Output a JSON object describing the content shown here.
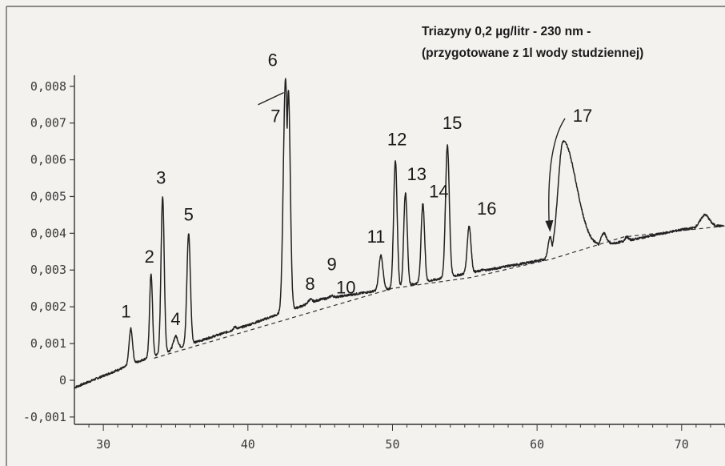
{
  "chart_data": {
    "type": "line",
    "title_lines": [
      "Triazyny 0,2 µg/litr - 230 nm -",
      "(przygotowane z 1l wody studziennej)"
    ],
    "xlabel": "",
    "ylabel": "",
    "xlim": [
      28,
      73
    ],
    "ylim": [
      -0.0012,
      0.0083
    ],
    "x_ticks": [
      {
        "value": 30,
        "label": "30"
      },
      {
        "value": 40,
        "label": "40"
      },
      {
        "value": 50,
        "label": "50"
      },
      {
        "value": 60,
        "label": "60"
      },
      {
        "value": 70,
        "label": "70"
      }
    ],
    "y_ticks": [
      {
        "value": -0.001,
        "label": "-0,001"
      },
      {
        "value": 0,
        "label": "0"
      },
      {
        "value": 0.001,
        "label": "0,001"
      },
      {
        "value": 0.002,
        "label": "0,002"
      },
      {
        "value": 0.003,
        "label": "0,003"
      },
      {
        "value": 0.004,
        "label": "0,004"
      },
      {
        "value": 0.005,
        "label": "0,005"
      },
      {
        "value": 0.006,
        "label": "0,006"
      },
      {
        "value": 0.007,
        "label": "0,007"
      },
      {
        "value": 0.008,
        "label": "0,008"
      }
    ],
    "baseline_points": [
      [
        28,
        -0.0002
      ],
      [
        33,
        0.0006
      ],
      [
        40,
        0.0015
      ],
      [
        45,
        0.0022
      ],
      [
        50,
        0.0025
      ],
      [
        55,
        0.0029
      ],
      [
        58,
        0.0031
      ],
      [
        62,
        0.0034
      ],
      [
        65,
        0.0037
      ],
      [
        70,
        0.0041
      ],
      [
        72,
        0.0042
      ]
    ],
    "dashed_baseline": [
      [
        33.5,
        0.0006
      ],
      [
        50,
        0.0025
      ],
      [
        55.5,
        0.0028
      ],
      [
        61,
        0.0033
      ],
      [
        66,
        0.0039
      ],
      [
        73,
        0.0042
      ]
    ],
    "peaks": [
      {
        "label": "1",
        "x": 31.9,
        "height": 0.0014,
        "width": 0.12
      },
      {
        "label": "2",
        "x": 33.3,
        "height": 0.0029,
        "width": 0.1
      },
      {
        "label": "3",
        "x": 34.1,
        "height": 0.005,
        "width": 0.11
      },
      {
        "label": "4",
        "x": 35.0,
        "height": 0.0012,
        "width": 0.15
      },
      {
        "label": "5",
        "x": 35.9,
        "height": 0.004,
        "width": 0.12
      },
      {
        "label": "6",
        "x": 42.6,
        "height": 0.0082,
        "width": 0.15
      },
      {
        "label": "7",
        "x": 42.8,
        "height": 0.0079,
        "width": 0.13
      },
      {
        "label": "8",
        "x": 44.3,
        "height": 0.0022,
        "width": 0.13
      },
      {
        "label": "9",
        "x": 45.8,
        "height": 0.0023,
        "width": 0.13
      },
      {
        "label": "10",
        "x": 47.0,
        "height": 0.0021,
        "width": 0.12
      },
      {
        "label": "11",
        "x": 49.2,
        "height": 0.0034,
        "width": 0.14
      },
      {
        "label": "12",
        "x": 50.2,
        "height": 0.006,
        "width": 0.12
      },
      {
        "label": "13",
        "x": 50.9,
        "height": 0.0051,
        "width": 0.12
      },
      {
        "label": "14",
        "x": 52.1,
        "height": 0.0048,
        "width": 0.12
      },
      {
        "label": "15",
        "x": 53.8,
        "height": 0.0064,
        "width": 0.13
      },
      {
        "label": "16",
        "x": 55.3,
        "height": 0.0042,
        "width": 0.13
      },
      {
        "label": "17",
        "x": 61.8,
        "height": 0.0065,
        "width": 0.35
      }
    ],
    "minor_bumps": [
      {
        "x": 39.1,
        "height": 0.00145,
        "width": 0.1
      },
      {
        "x": 48.3,
        "height": 0.0022,
        "width": 0.12
      },
      {
        "x": 56.2,
        "height": 0.003,
        "width": 0.12
      },
      {
        "x": 57.8,
        "height": 0.0031,
        "width": 0.25
      },
      {
        "x": 60.9,
        "height": 0.0039,
        "width": 0.14
      },
      {
        "x": 63.3,
        "height": 0.0042,
        "width": 0.3
      },
      {
        "x": 64.6,
        "height": 0.004,
        "width": 0.2
      },
      {
        "x": 66.2,
        "height": 0.0039,
        "width": 0.12
      },
      {
        "x": 71.6,
        "height": 0.0045,
        "width": 0.3
      }
    ],
    "grid": false,
    "legend": "none"
  }
}
